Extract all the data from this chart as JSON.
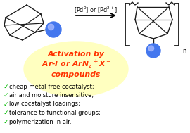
{
  "bg_color": "#ffffff",
  "ellipse_color": "#ffffc0",
  "activation_color": "#ff3300",
  "bullet_color": "#00bb00",
  "bullet_text_color": "#000000",
  "bullet_items": [
    "cheap metal-free cocatalyst;",
    "air and moisture insensitive;",
    "low cocatalyst loadings;",
    "tolerance to functional groups;",
    "polymerization in air."
  ],
  "sphere_color": "#4477ee",
  "sphere_highlight": "#aabbff",
  "arrow_color": "#000000",
  "bond_color": "#1a1a1a",
  "bond_lw": 1.0,
  "fig_w": 2.7,
  "fig_h": 1.89,
  "dpi": 100
}
